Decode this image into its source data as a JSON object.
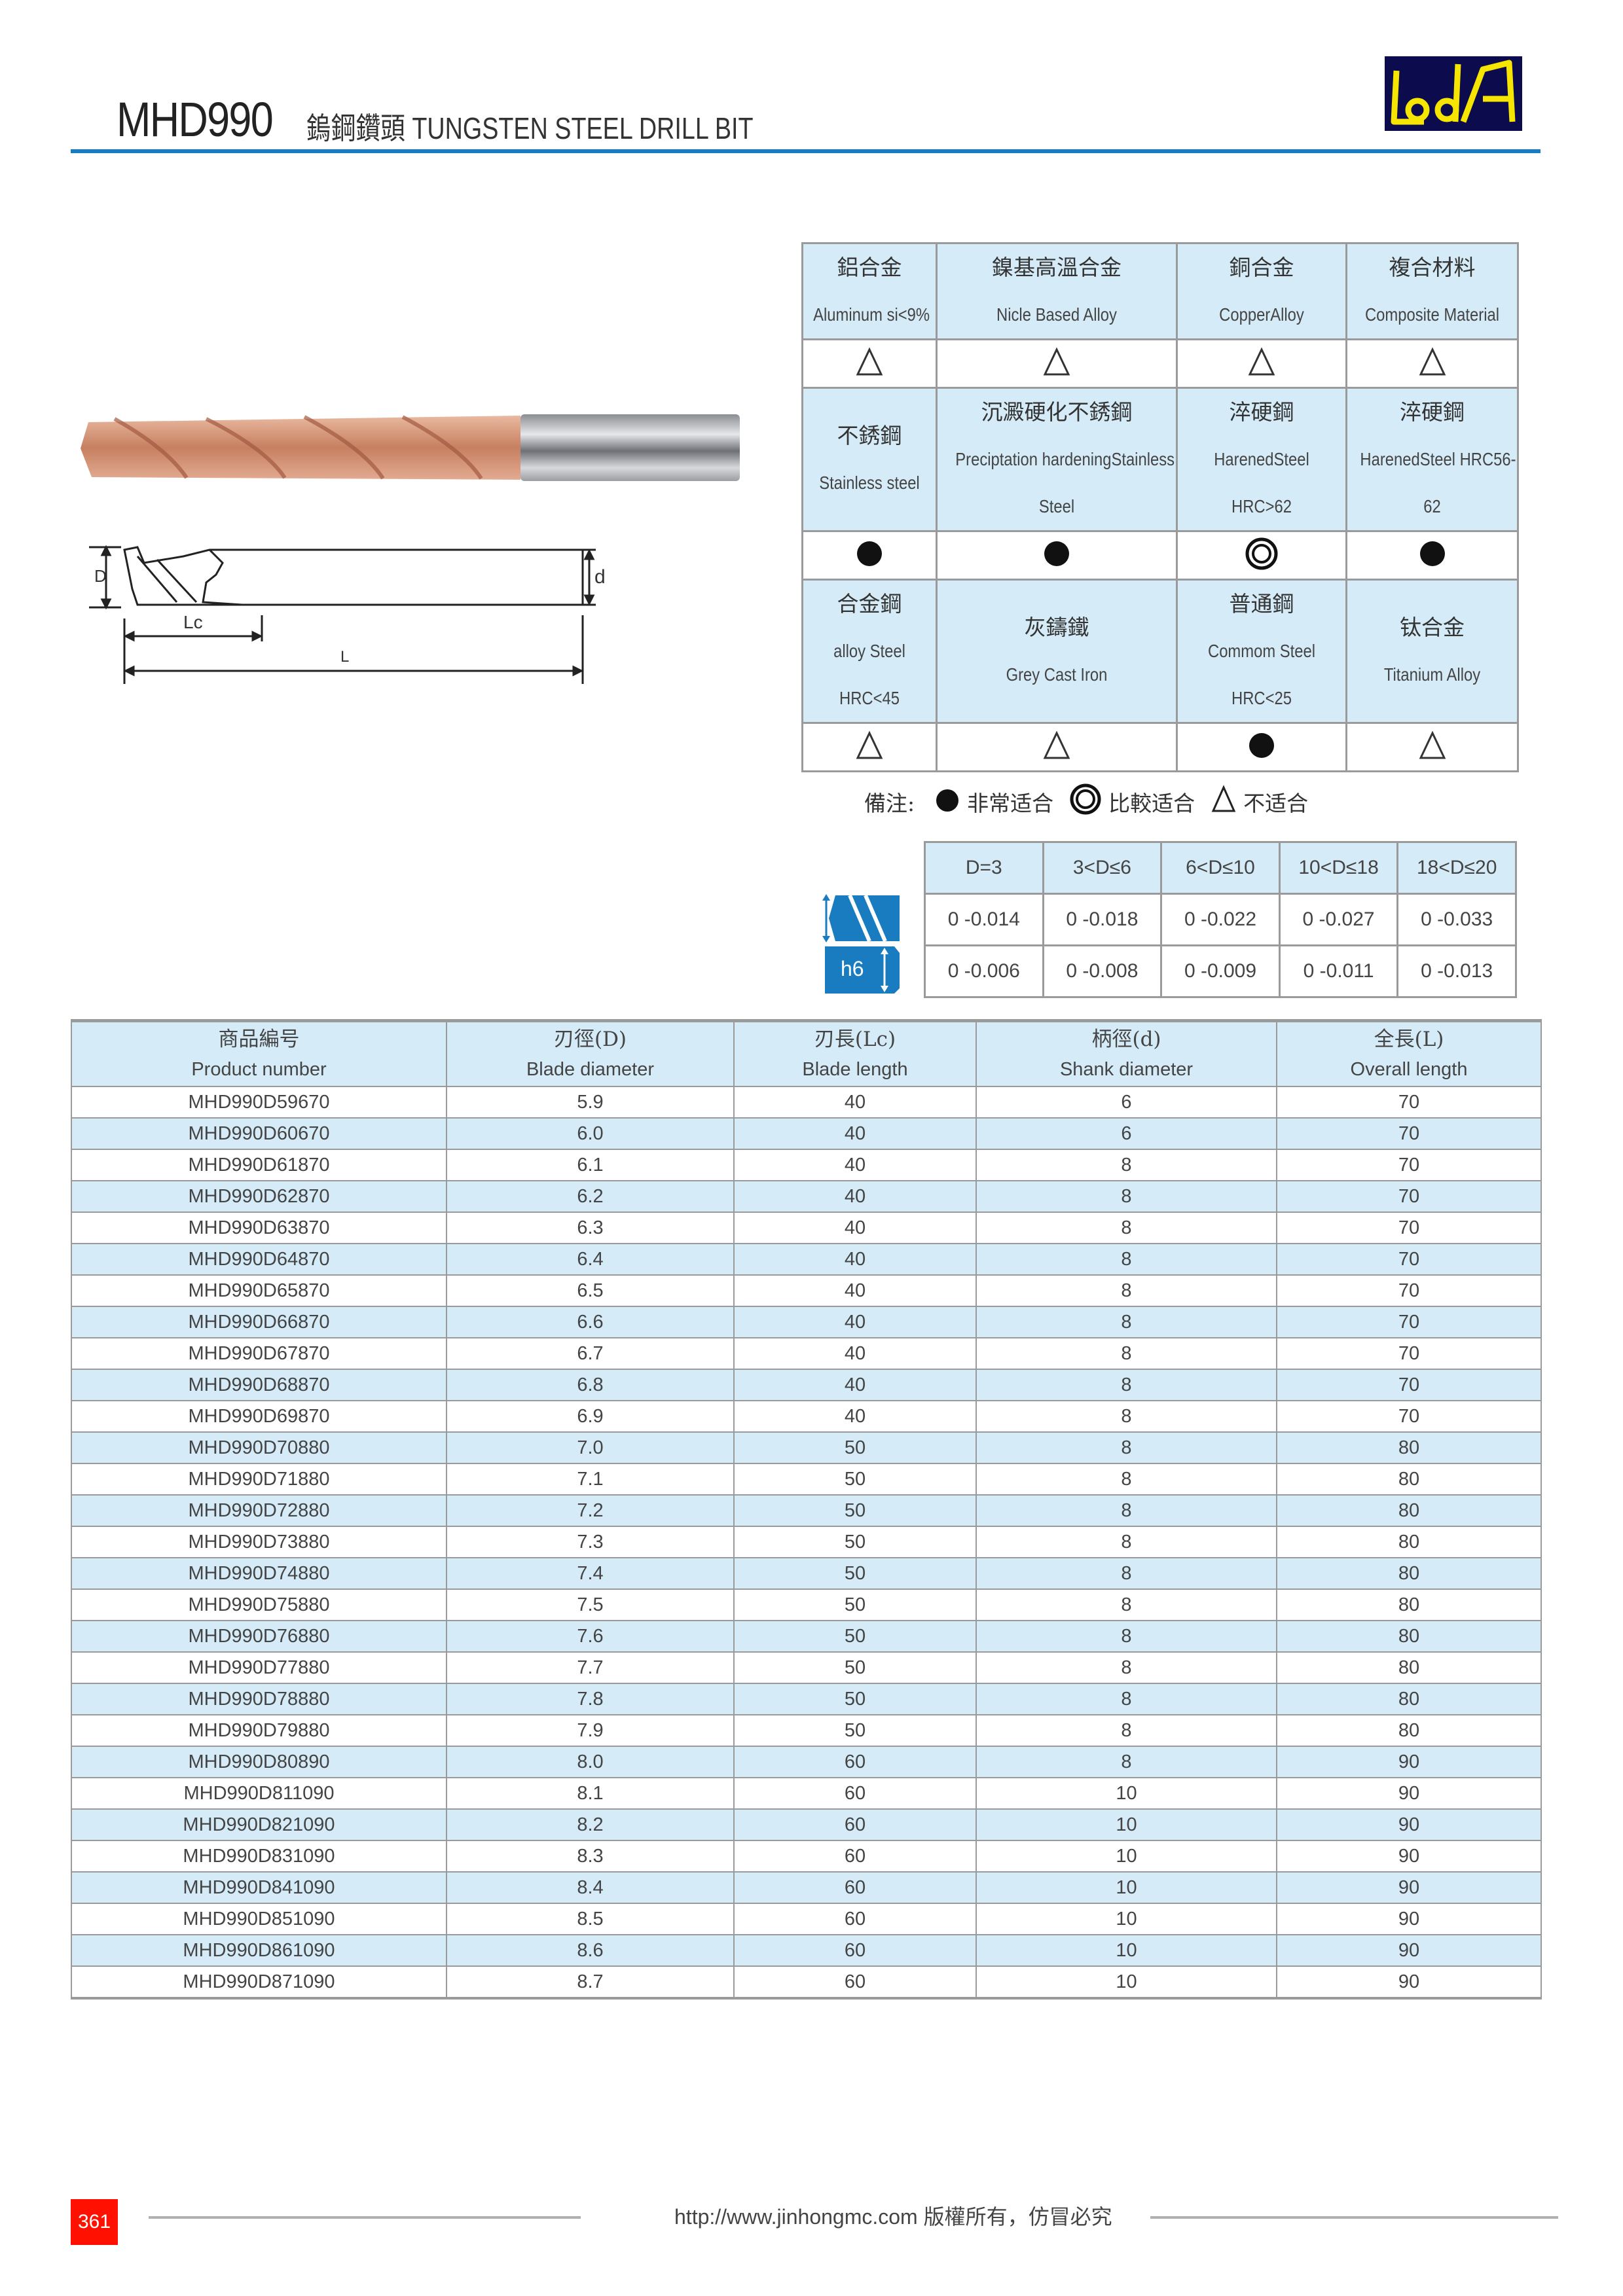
{
  "header": {
    "model": "MHD990",
    "title": "鎢鋼鑽頭 TUNGSTEN STEEL DRILL BIT",
    "logo_text": "LOA",
    "accent_color": "#1a7cc0"
  },
  "diagram": {
    "label_D": "D",
    "label_d": "d",
    "label_Lc": "Lc",
    "label_L": "L"
  },
  "materials": [
    [
      {
        "zh": "鋁合金",
        "en": [
          "Aluminum si<9%"
        ],
        "rating": "triangle"
      },
      {
        "zh": "鎳基高溫合金",
        "en": [
          "Nicle Based Alloy"
        ],
        "rating": "triangle"
      },
      {
        "zh": "銅合金",
        "en": [
          "CopperAlloy"
        ],
        "rating": "triangle"
      },
      {
        "zh": "複合材料",
        "en": [
          "Composite Material"
        ],
        "rating": "triangle"
      }
    ],
    [
      {
        "zh": "不銹鋼",
        "en": [
          "Stainless steel"
        ],
        "rating": "dot"
      },
      {
        "zh": "沉澱硬化不銹鋼",
        "en": [
          "Preciptation hardeningStainless",
          "Steel"
        ],
        "rating": "dot"
      },
      {
        "zh": "淬硬鋼",
        "en": [
          "HarenedSteel",
          "HRC>62"
        ],
        "rating": "ring"
      },
      {
        "zh": "淬硬鋼",
        "en": [
          "HarenedSteel HRC56-",
          "62"
        ],
        "rating": "dot"
      }
    ],
    [
      {
        "zh": "合金鋼",
        "en": [
          "alloy Steel",
          "HRC<45"
        ],
        "rating": "triangle"
      },
      {
        "zh": "灰鑄鐵",
        "en": [
          "Grey Cast Iron"
        ],
        "rating": "triangle"
      },
      {
        "zh": "普通鋼",
        "en": [
          "Commom Steel",
          "HRC<25"
        ],
        "rating": "dot"
      },
      {
        "zh": "钛合金",
        "en": [
          "Titanium Alloy"
        ],
        "rating": "triangle"
      }
    ]
  ],
  "legend": {
    "label": "備注:",
    "dot": "非常适合",
    "ring": "比較适合",
    "triangle": "不适合"
  },
  "tolerance": {
    "icon_label": "h6",
    "headers": [
      "D=3",
      "3<D≤6",
      "6<D≤10",
      "10<D≤18",
      "18<D≤20"
    ],
    "rows": [
      [
        "0 -0.014",
        "0 -0.018",
        "0 -0.022",
        "0 -0.027",
        "0 -0.033"
      ],
      [
        "0 -0.006",
        "0 -0.008",
        "0 -0.009",
        "0 -0.011",
        "0 -0.013"
      ]
    ]
  },
  "table": {
    "columns": [
      {
        "zh": "商品編号",
        "en": "Product number"
      },
      {
        "zh": "刃徑(D)",
        "en": "Blade diameter"
      },
      {
        "zh": "刃長(Lc)",
        "en": "Blade length"
      },
      {
        "zh": "柄徑(d)",
        "en": "Shank diameter"
      },
      {
        "zh": "全長(L)",
        "en": "Overall length"
      }
    ],
    "rows": [
      [
        "MHD990D59670",
        "5.9",
        "40",
        "6",
        "70"
      ],
      [
        "MHD990D60670",
        "6.0",
        "40",
        "6",
        "70"
      ],
      [
        "MHD990D61870",
        "6.1",
        "40",
        "8",
        "70"
      ],
      [
        "MHD990D62870",
        "6.2",
        "40",
        "8",
        "70"
      ],
      [
        "MHD990D63870",
        "6.3",
        "40",
        "8",
        "70"
      ],
      [
        "MHD990D64870",
        "6.4",
        "40",
        "8",
        "70"
      ],
      [
        "MHD990D65870",
        "6.5",
        "40",
        "8",
        "70"
      ],
      [
        "MHD990D66870",
        "6.6",
        "40",
        "8",
        "70"
      ],
      [
        "MHD990D67870",
        "6.7",
        "40",
        "8",
        "70"
      ],
      [
        "MHD990D68870",
        "6.8",
        "40",
        "8",
        "70"
      ],
      [
        "MHD990D69870",
        "6.9",
        "40",
        "8",
        "70"
      ],
      [
        "MHD990D70880",
        "7.0",
        "50",
        "8",
        "80"
      ],
      [
        "MHD990D71880",
        "7.1",
        "50",
        "8",
        "80"
      ],
      [
        "MHD990D72880",
        "7.2",
        "50",
        "8",
        "80"
      ],
      [
        "MHD990D73880",
        "7.3",
        "50",
        "8",
        "80"
      ],
      [
        "MHD990D74880",
        "7.4",
        "50",
        "8",
        "80"
      ],
      [
        "MHD990D75880",
        "7.5",
        "50",
        "8",
        "80"
      ],
      [
        "MHD990D76880",
        "7.6",
        "50",
        "8",
        "80"
      ],
      [
        "MHD990D77880",
        "7.7",
        "50",
        "8",
        "80"
      ],
      [
        "MHD990D78880",
        "7.8",
        "50",
        "8",
        "80"
      ],
      [
        "MHD990D79880",
        "7.9",
        "50",
        "8",
        "80"
      ],
      [
        "MHD990D80890",
        "8.0",
        "60",
        "8",
        "90"
      ],
      [
        "MHD990D811090",
        "8.1",
        "60",
        "10",
        "90"
      ],
      [
        "MHD990D821090",
        "8.2",
        "60",
        "10",
        "90"
      ],
      [
        "MHD990D831090",
        "8.3",
        "60",
        "10",
        "90"
      ],
      [
        "MHD990D841090",
        "8.4",
        "60",
        "10",
        "90"
      ],
      [
        "MHD990D851090",
        "8.5",
        "60",
        "10",
        "90"
      ],
      [
        "MHD990D861090",
        "8.6",
        "60",
        "10",
        "90"
      ],
      [
        "MHD990D871090",
        "8.7",
        "60",
        "10",
        "90"
      ]
    ]
  },
  "footer": {
    "page": "361",
    "text": "http://www.jinhongmc.com 版權所有，仿冒必究",
    "page_color": "#ff1000"
  }
}
